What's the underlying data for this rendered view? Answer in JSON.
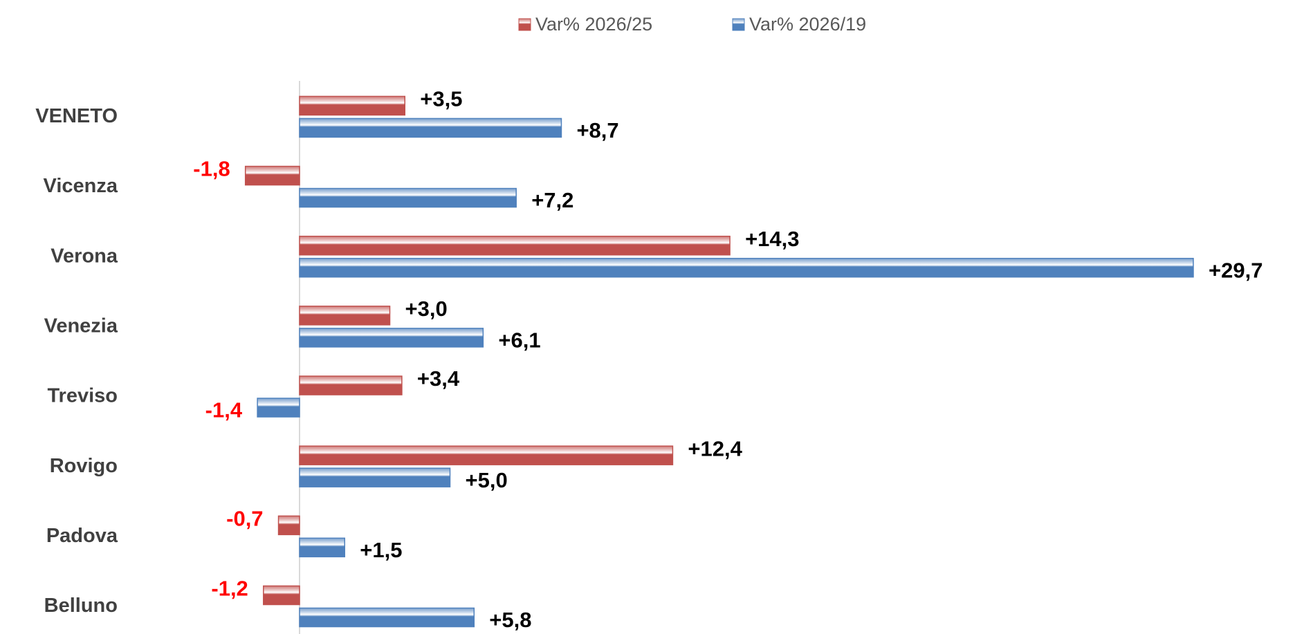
{
  "chart_data": {
    "type": "bar",
    "orientation": "horizontal",
    "categories": [
      "VENETO",
      "Vicenza",
      "Verona",
      "Venezia",
      "Treviso",
      "Rovigo",
      "Padova",
      "Belluno"
    ],
    "series": [
      {
        "name": "Var% 2026/25",
        "color": "#c0504d",
        "values": [
          3.5,
          -1.8,
          14.3,
          3.0,
          3.4,
          12.4,
          -0.7,
          -1.2
        ],
        "value_labels": [
          "+3,5",
          "-1,8",
          "+14,3",
          "+3,0",
          "+3,4",
          "+12,4",
          "-0,7",
          "-1,2"
        ]
      },
      {
        "name": "Var% 2026/19",
        "color": "#4f81bd",
        "values": [
          8.7,
          7.2,
          29.7,
          6.1,
          -1.4,
          5.0,
          1.5,
          5.8
        ],
        "value_labels": [
          "+8,7",
          "+7,2",
          "+29,7",
          "+6,1",
          "-1,4",
          "+5,0",
          "+1,5",
          "+5,8"
        ]
      }
    ],
    "legend": "top",
    "negative_label_color": "#ff0000"
  }
}
